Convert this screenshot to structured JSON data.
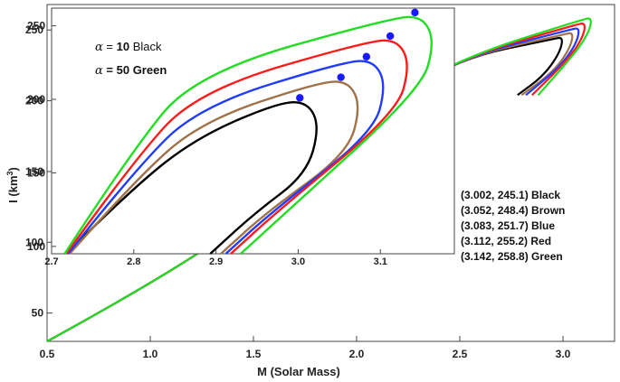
{
  "chart_data": [
    {
      "type": "line",
      "xlabel": "M (Solar  Mass)",
      "ylabel_prefix": "I  (km",
      "ylabel_sup": "3",
      "ylabel_suffix": ")",
      "xlim": [
        0.5,
        3.25
      ],
      "ylim": [
        30,
        268
      ],
      "xticks": [
        "0.5",
        "1.0",
        "1.5",
        "2.0",
        "2.5",
        "3.0"
      ],
      "yticks": [
        "50",
        "100",
        "150",
        "200",
        "250"
      ],
      "annotations": [
        "(3.002, 245.1) Black",
        "(3.052, 248.4) Brown",
        "(3.083, 251.7) Blue",
        "(3.112, 255.2) Red",
        "(3.142, 258.8) Green"
      ],
      "series": [
        {
          "color": "#000000",
          "max_point": [
            3.002,
            245.1
          ],
          "low_end": [
            0.5,
            30
          ],
          "mid_point": [
            2.0,
            188
          ],
          "unstable_end": [
            2.78,
            204
          ]
        },
        {
          "color": "#a0724a",
          "max_point": [
            3.052,
            248.4
          ],
          "low_end": [
            0.5,
            30
          ],
          "mid_point": [
            2.0,
            188
          ],
          "unstable_end": [
            2.8,
            204
          ]
        },
        {
          "color": "#1f3cff",
          "max_point": [
            3.083,
            251.7
          ],
          "low_end": [
            0.5,
            30
          ],
          "mid_point": [
            2.0,
            188
          ],
          "unstable_end": [
            2.82,
            204
          ]
        },
        {
          "color": "#ff1a1a",
          "max_point": [
            3.112,
            255.2
          ],
          "low_end": [
            0.5,
            30
          ],
          "mid_point": [
            2.0,
            188
          ],
          "unstable_end": [
            2.85,
            204
          ]
        },
        {
          "color": "#22dd22",
          "max_point": [
            3.142,
            258.8
          ],
          "low_end": [
            0.5,
            30
          ],
          "mid_point": [
            2.0,
            188
          ],
          "unstable_end": [
            2.88,
            204
          ]
        }
      ]
    },
    {
      "type": "line",
      "xlim": [
        2.7,
        3.19
      ],
      "ylim": [
        95,
        262
      ],
      "xticks": [
        "2.7",
        "2.8",
        "2.9",
        "3.0",
        "3.1"
      ],
      "yticks": [
        "100",
        "150",
        "200",
        "250"
      ],
      "legend_alpha1_value": "10",
      "legend_alpha1_color": " Black",
      "legend_alpha2_value": "50",
      "legend_alpha2_color": " Green",
      "series": [
        {
          "color": "#000000",
          "max_point": [
            3.002,
            201
          ],
          "upper_start": [
            2.718,
            95
          ],
          "lower_end": [
            2.893,
            95
          ]
        },
        {
          "color": "#a0724a",
          "max_point": [
            3.052,
            215
          ],
          "upper_start": [
            2.722,
            95
          ],
          "lower_end": [
            2.906,
            95
          ]
        },
        {
          "color": "#1f3cff",
          "max_point": [
            3.083,
            229
          ],
          "upper_start": [
            2.72,
            95
          ],
          "lower_end": [
            2.912,
            95
          ]
        },
        {
          "color": "#ff1a1a",
          "max_point": [
            3.112,
            243
          ],
          "upper_start": [
            2.718,
            95
          ],
          "lower_end": [
            2.918,
            95
          ]
        },
        {
          "color": "#22dd22",
          "max_point": [
            3.142,
            259
          ],
          "upper_start": [
            2.716,
            95
          ],
          "lower_end": [
            2.93,
            95
          ]
        }
      ]
    }
  ]
}
